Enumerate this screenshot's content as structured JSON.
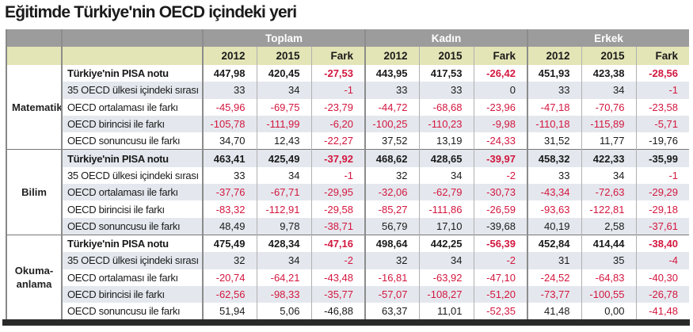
{
  "title": "Eğitimde Türkiye'nin OECD içindeki yeri",
  "groups": [
    "Toplam",
    "Kadın",
    "Erkek"
  ],
  "subheaders": [
    "2012",
    "2015",
    "Fark",
    "2012",
    "2015",
    "Fark",
    "2012",
    "2015",
    "Fark"
  ],
  "colors": {
    "negative_red": "#d3173f",
    "header_gray": "#9c9c9c",
    "subheader_yellow": "#e3e5b6",
    "row_shade": "#e4e8ee"
  },
  "sections": [
    {
      "name": "Matematik",
      "rows": [
        {
          "label": "Türkiye'nin PISA notu",
          "bold": true,
          "values": [
            "447,98",
            "420,45",
            "-27,53",
            "443,95",
            "417,53",
            "-26,42",
            "451,93",
            "423,38",
            "-28,56"
          ],
          "red": [
            0,
            0,
            1,
            0,
            0,
            1,
            0,
            0,
            1
          ]
        },
        {
          "label": "35 OECD ülkesi içindeki sırası",
          "values": [
            "33",
            "34",
            "-1",
            "33",
            "33",
            "0",
            "33",
            "34",
            "-1"
          ],
          "red": [
            0,
            0,
            1,
            0,
            0,
            0,
            0,
            0,
            1
          ]
        },
        {
          "label": "OECD ortalaması ile farkı",
          "values": [
            "-45,96",
            "-69,75",
            "-23,79",
            "-44,72",
            "-68,68",
            "-23,96",
            "-47,18",
            "-70,76",
            "-23,58"
          ],
          "red": [
            1,
            1,
            1,
            1,
            1,
            1,
            1,
            1,
            1
          ]
        },
        {
          "label": "OECD birincisi ile farkı",
          "values": [
            "-105,78",
            "-111,99",
            "-6,20",
            "-100,25",
            "-110,23",
            "-9,98",
            "-110,18",
            "-115,89",
            "-5,71"
          ],
          "red": [
            1,
            1,
            1,
            1,
            1,
            1,
            1,
            1,
            1
          ]
        },
        {
          "label": "OECD sonuncusu ile farkı",
          "values": [
            "34,70",
            "12,43",
            "-22,27",
            "37,52",
            "13,19",
            "-24,33",
            "31,52",
            "11,77",
            "-19,76"
          ],
          "red": [
            0,
            0,
            1,
            0,
            0,
            1,
            0,
            0,
            0
          ]
        }
      ]
    },
    {
      "name": "Bilim",
      "rows": [
        {
          "label": "Türkiye'nin PISA notu",
          "bold": true,
          "values": [
            "463,41",
            "425,49",
            "-37,92",
            "468,62",
            "428,65",
            "-39,97",
            "458,32",
            "422,33",
            "-35,99"
          ],
          "red": [
            0,
            0,
            1,
            0,
            0,
            1,
            0,
            0,
            0
          ]
        },
        {
          "label": "35 OECD ülkesi içindeki sırası",
          "values": [
            "33",
            "34",
            "-1",
            "32",
            "34",
            "-2",
            "33",
            "34",
            "-1"
          ],
          "red": [
            0,
            0,
            1,
            0,
            0,
            1,
            0,
            0,
            1
          ]
        },
        {
          "label": "OECD ortalaması ile farkı",
          "values": [
            "-37,76",
            "-67,71",
            "-29,95",
            "-32,06",
            "-62,79",
            "-30,73",
            "-43,34",
            "-72,63",
            "-29,29"
          ],
          "red": [
            1,
            1,
            1,
            1,
            1,
            1,
            1,
            1,
            1
          ]
        },
        {
          "label": "OECD birincisi ile farkı",
          "values": [
            "-83,32",
            "-112,91",
            "-29,58",
            "-85,27",
            "-111,86",
            "-26,59",
            "-93,63",
            "-122,81",
            "-29,18"
          ],
          "red": [
            1,
            1,
            1,
            1,
            1,
            1,
            1,
            1,
            1
          ]
        },
        {
          "label": "OECD sonuncusu ile farkı",
          "values": [
            "48,49",
            "9,78",
            "-38,71",
            "56,79",
            "17,10",
            "-39,68",
            "40,19",
            "2,58",
            "-37,61"
          ],
          "red": [
            0,
            0,
            1,
            0,
            0,
            0,
            0,
            0,
            1
          ]
        }
      ]
    },
    {
      "name": "Okuma-anlama",
      "rows": [
        {
          "label": "Türkiye'nin PISA notu",
          "bold": true,
          "values": [
            "475,49",
            "428,34",
            "-47,16",
            "498,64",
            "442,25",
            "-56,39",
            "452,84",
            "414,44",
            "-38,40"
          ],
          "red": [
            0,
            0,
            1,
            0,
            0,
            1,
            0,
            0,
            1
          ]
        },
        {
          "label": "35 OECD ülkesi içindeki sırası",
          "values": [
            "32",
            "34",
            "-2",
            "32",
            "34",
            "-2",
            "31",
            "35",
            "-4"
          ],
          "red": [
            0,
            0,
            1,
            0,
            0,
            1,
            0,
            0,
            1
          ]
        },
        {
          "label": "OECD ortalaması ile farkı",
          "values": [
            "-20,74",
            "-64,21",
            "-43,48",
            "-16,81",
            "-63,92",
            "-47,10",
            "-24,52",
            "-64,83",
            "-40,30"
          ],
          "red": [
            1,
            1,
            1,
            1,
            1,
            1,
            1,
            1,
            1
          ]
        },
        {
          "label": "OECD birincisi ile farkı",
          "values": [
            "-62,56",
            "-98,33",
            "-35,77",
            "-57,07",
            "-108,27",
            "-51,20",
            "-73,77",
            "-100,55",
            "-26,78"
          ],
          "red": [
            1,
            1,
            1,
            1,
            1,
            1,
            1,
            1,
            1
          ]
        },
        {
          "label": "OECD sonuncusu ile farkı",
          "values": [
            "51,94",
            "5,06",
            "-46,88",
            "63,37",
            "11,01",
            "-52,35",
            "41,48",
            "0,00",
            "-41,48"
          ],
          "red": [
            0,
            0,
            0,
            0,
            0,
            1,
            0,
            0,
            1
          ]
        }
      ]
    }
  ]
}
